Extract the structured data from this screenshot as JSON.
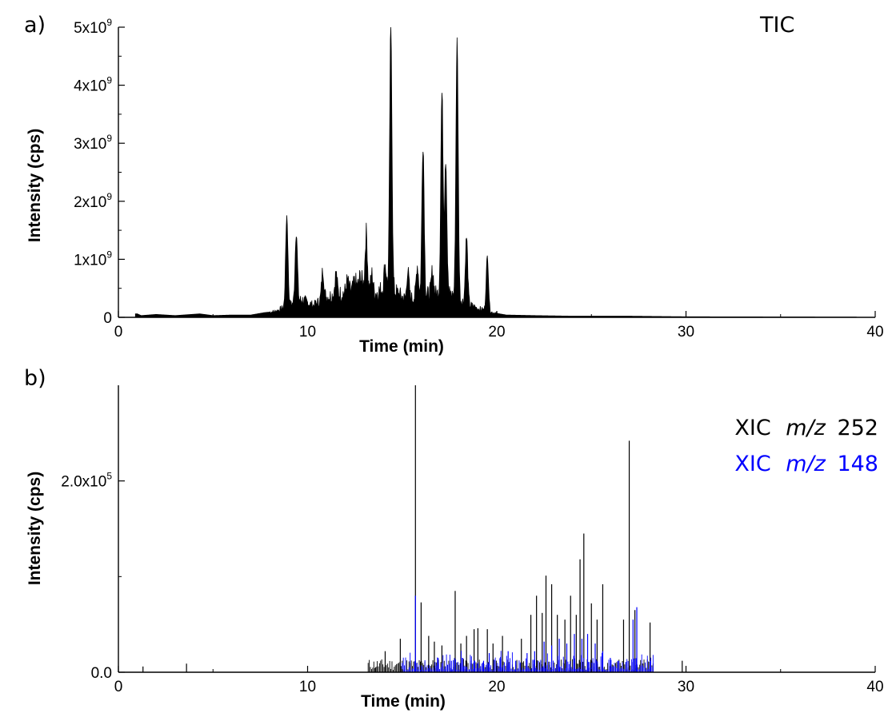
{
  "chart_data": [
    {
      "type": "line",
      "panel_label": "a)",
      "annotation": "TIC",
      "xlabel": "Time (min)",
      "ylabel": "Intensity (cps)",
      "xlim": [
        0,
        40
      ],
      "ylim": [
        0,
        5000000000
      ],
      "x_ticks": [
        0,
        10,
        20,
        30,
        40
      ],
      "x_tick_labels": [
        "0",
        "10",
        "20",
        "30",
        "40"
      ],
      "y_ticks": [
        0,
        1000000000,
        2000000000,
        3000000000,
        4000000000,
        5000000000
      ],
      "y_tick_labels": [
        {
          "base": "0",
          "exp": ""
        },
        {
          "base": "1x10",
          "exp": "9"
        },
        {
          "base": "2x10",
          "exp": "9"
        },
        {
          "base": "3x10",
          "exp": "9"
        },
        {
          "base": "4x10",
          "exp": "9"
        },
        {
          "base": "5x10",
          "exp": "9"
        }
      ],
      "grid": false,
      "series": [
        {
          "color": "#000000",
          "baseline": [
            [
              1.0,
              0.06
            ],
            [
              1.2,
              0.03
            ],
            [
              2.0,
              0.05
            ],
            [
              3.0,
              0.03
            ],
            [
              4.3,
              0.06
            ],
            [
              5.0,
              0.03
            ],
            [
              6.0,
              0.04
            ],
            [
              7.0,
              0.04
            ],
            [
              7.7,
              0.08
            ],
            [
              8.3,
              0.1
            ],
            [
              9.7,
              0.3
            ],
            [
              10.3,
              0.2
            ],
            [
              11.0,
              0.35
            ],
            [
              11.7,
              0.4
            ],
            [
              12.3,
              0.45
            ],
            [
              12.8,
              0.55
            ],
            [
              13.5,
              0.4
            ],
            [
              14.1,
              0.5
            ],
            [
              14.6,
              0.45
            ],
            [
              15.2,
              0.3
            ],
            [
              15.8,
              0.35
            ],
            [
              16.5,
              0.4
            ],
            [
              17.5,
              0.4
            ],
            [
              18.3,
              0.25
            ],
            [
              19.0,
              0.15
            ],
            [
              19.8,
              0.08
            ],
            [
              20.5,
              0.04
            ],
            [
              22.0,
              0.03
            ],
            [
              24.0,
              0.02
            ],
            [
              27.0,
              0.02
            ],
            [
              30.0,
              0.01
            ],
            [
              33.0,
              0.008
            ],
            [
              38.0,
              0.005
            ]
          ],
          "peaks": [
            [
              8.9,
              1.75
            ],
            [
              9.4,
              1.48
            ],
            [
              10.8,
              0.82
            ],
            [
              11.5,
              0.75
            ],
            [
              12.1,
              0.62
            ],
            [
              12.5,
              0.6
            ],
            [
              12.8,
              0.7
            ],
            [
              13.1,
              1.45
            ],
            [
              13.4,
              0.75
            ],
            [
              14.1,
              0.9
            ],
            [
              14.4,
              5.0
            ],
            [
              15.3,
              0.8
            ],
            [
              15.8,
              0.9
            ],
            [
              16.1,
              3.0
            ],
            [
              16.6,
              0.8
            ],
            [
              17.1,
              3.85
            ],
            [
              17.3,
              2.75
            ],
            [
              17.9,
              4.75
            ],
            [
              18.4,
              1.38
            ],
            [
              19.5,
              1.05
            ]
          ],
          "values_unit": "1e9 cps"
        }
      ]
    },
    {
      "type": "line",
      "panel_label": "b)",
      "xlabel": "Time (min)",
      "ylabel": "Intensity (cps)",
      "xlim": [
        0,
        40
      ],
      "ylim": [
        0,
        300000
      ],
      "x_ticks": [
        0,
        10,
        20,
        30,
        40
      ],
      "x_tick_labels": [
        "0",
        "10",
        "20",
        "30",
        "40"
      ],
      "y_ticks": [
        0,
        200000
      ],
      "y_tick_labels": [
        {
          "base": "0.0",
          "exp": ""
        },
        {
          "base": "2.0x10",
          "exp": "5"
        }
      ],
      "grid": false,
      "series": [
        {
          "name": "XIC  m/z 252",
          "legend_prefix": "XIC",
          "legend_italic": "m/z",
          "legend_suffix": "252",
          "color": "#000000",
          "values_unit": "1e5 cps",
          "peaks": [
            [
              1.3,
              0.06
            ],
            [
              3.6,
              0.09
            ],
            [
              13.6,
              0.05
            ],
            [
              14.1,
              0.22
            ],
            [
              14.9,
              0.35
            ],
            [
              15.7,
              3.0
            ],
            [
              16.0,
              0.73
            ],
            [
              16.4,
              0.38
            ],
            [
              16.7,
              0.32
            ],
            [
              17.1,
              0.28
            ],
            [
              17.8,
              0.85
            ],
            [
              18.1,
              0.3
            ],
            [
              18.4,
              0.38
            ],
            [
              18.8,
              0.45
            ],
            [
              19.0,
              0.46
            ],
            [
              19.5,
              0.45
            ],
            [
              19.8,
              0.3
            ],
            [
              20.3,
              0.38
            ],
            [
              21.3,
              0.35
            ],
            [
              21.8,
              0.6
            ],
            [
              22.1,
              0.8
            ],
            [
              22.4,
              0.62
            ],
            [
              22.6,
              1.01
            ],
            [
              22.9,
              0.92
            ],
            [
              23.2,
              0.6
            ],
            [
              23.6,
              0.55
            ],
            [
              23.9,
              0.8
            ],
            [
              24.2,
              0.6
            ],
            [
              24.4,
              1.18
            ],
            [
              24.6,
              1.45
            ],
            [
              25.0,
              0.72
            ],
            [
              25.3,
              0.55
            ],
            [
              25.6,
              0.92
            ],
            [
              26.7,
              0.55
            ],
            [
              27.0,
              2.42
            ],
            [
              27.3,
              0.65
            ],
            [
              28.1,
              0.52
            ],
            [
              29.8,
              0.12
            ]
          ]
        },
        {
          "name": "XIC  m/z 148",
          "legend_prefix": "XIC",
          "legend_italic": "m/z",
          "legend_suffix": "148",
          "color": "#0000ff",
          "values_unit": "1e5 cps",
          "peaks": [
            [
              15.7,
              0.8
            ],
            [
              16.9,
              0.15
            ],
            [
              17.6,
              0.12
            ],
            [
              18.2,
              0.15
            ],
            [
              18.8,
              0.12
            ],
            [
              19.3,
              0.12
            ],
            [
              19.6,
              0.2
            ],
            [
              20.2,
              0.16
            ],
            [
              20.6,
              0.22
            ],
            [
              21.0,
              0.12
            ],
            [
              21.6,
              0.2
            ],
            [
              22.0,
              0.22
            ],
            [
              22.5,
              0.32
            ],
            [
              22.9,
              0.28
            ],
            [
              23.3,
              0.35
            ],
            [
              23.7,
              0.3
            ],
            [
              24.1,
              0.4
            ],
            [
              24.5,
              0.35
            ],
            [
              24.8,
              0.4
            ],
            [
              25.2,
              0.3
            ],
            [
              25.6,
              0.22
            ],
            [
              26.0,
              0.15
            ],
            [
              26.4,
              0.12
            ],
            [
              27.2,
              0.55
            ],
            [
              27.4,
              0.68
            ],
            [
              28.1,
              0.12
            ]
          ]
        }
      ]
    }
  ]
}
